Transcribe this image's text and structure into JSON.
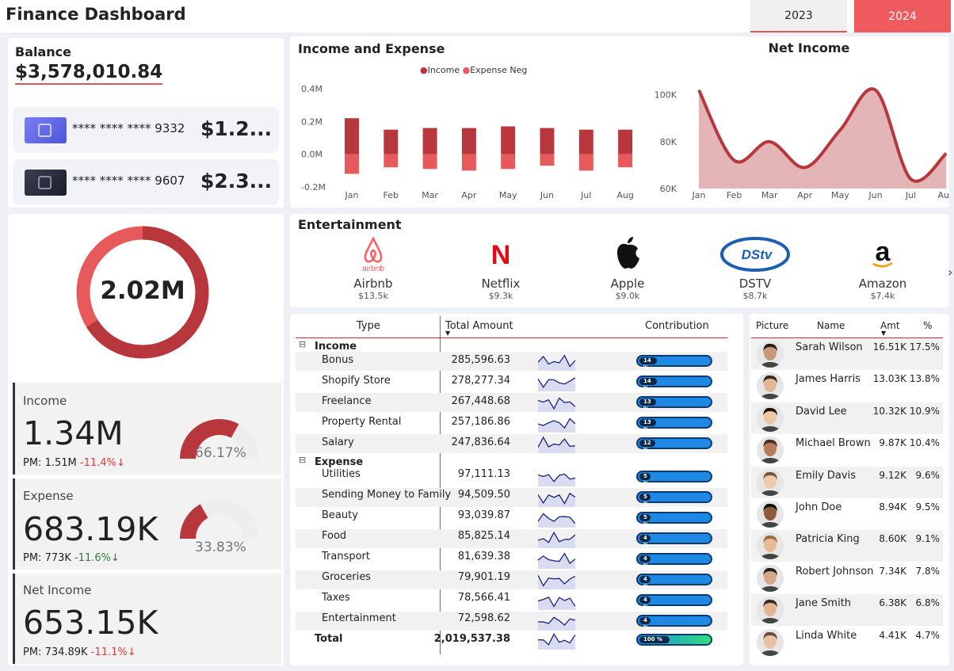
{
  "header": {
    "title": "Finance Dashboard",
    "years": [
      "2023",
      "2024"
    ],
    "selected_year": "2024"
  },
  "balance": {
    "label": "Balance",
    "amount": "$3,578,010.84",
    "cards": [
      {
        "number": "**** **** **** 9332",
        "amount": "$1.2..."
      },
      {
        "number": "**** **** **** 9607",
        "amount": "$2.3..."
      }
    ]
  },
  "donut": {
    "value": "2.02M",
    "income_share": 0.6617
  },
  "kpis": {
    "income": {
      "label": "Income",
      "value": "1.34M",
      "pm_label": "PM: 1.51M",
      "change": "-11.4%",
      "gauge_pct": "66.17%",
      "gauge_fraction": 0.6617
    },
    "expense": {
      "label": "Expense",
      "value": "683.19K",
      "pm_label": "PM: 773K",
      "change": "-11.6%",
      "gauge_pct": "33.83%",
      "gauge_fraction": 0.3383
    },
    "net": {
      "label": "Net Income",
      "value": "653.15K",
      "pm_label": "PM: 734.89K",
      "change": "-11.1%"
    }
  },
  "chart_data": [
    {
      "type": "bar",
      "title": "Income and Expense",
      "categories": [
        "Jan",
        "Feb",
        "Mar",
        "Apr",
        "May",
        "Jun",
        "Jul",
        "Aug"
      ],
      "series": [
        {
          "name": "Income",
          "values": [
            0.22,
            0.15,
            0.16,
            0.16,
            0.17,
            0.16,
            0.15,
            0.15
          ],
          "color": "#b8373d"
        },
        {
          "name": "Expense Neg",
          "values": [
            -0.12,
            -0.08,
            -0.09,
            -0.1,
            -0.09,
            -0.07,
            -0.1,
            -0.08
          ],
          "color": "#e8595c"
        }
      ],
      "yticks": [
        "0.4M",
        "0.2M",
        "0.0M",
        "-0.2M"
      ],
      "ylim": [
        -0.2,
        0.4
      ]
    },
    {
      "type": "area",
      "title": "Net Income",
      "x": [
        "Jan",
        "Feb",
        "Mar",
        "Apr",
        "May",
        "Jun",
        "Jul",
        "Aug"
      ],
      "values": [
        102000,
        72000,
        80000,
        69000,
        85000,
        102000,
        64000,
        75000
      ],
      "yticks": [
        "100K",
        "80K",
        "60K"
      ],
      "ylim": [
        60000,
        108000
      ]
    }
  ],
  "entertainment": {
    "title": "Entertainment",
    "items": [
      {
        "name": "Airbnb",
        "value": "$13.5k",
        "logo_text": "airbnb"
      },
      {
        "name": "Netflix",
        "value": "$9.3k",
        "logo_text": "N"
      },
      {
        "name": "Apple",
        "value": "$9.0k"
      },
      {
        "name": "DSTV",
        "value": "$8.7k",
        "logo_text": "DStv"
      },
      {
        "name": "Amazon",
        "value": "$7.4k",
        "logo_text": "a"
      }
    ]
  },
  "table": {
    "headers": {
      "type": "Type",
      "total": "Total Amount",
      "contribution": "Contribution"
    },
    "income_label": "Income",
    "expense_label": "Expense",
    "income": [
      {
        "name": "Bonus",
        "amount": "285,596.63",
        "pct": "14 %",
        "frac": 0.14
      },
      {
        "name": "Shopify Store",
        "amount": "278,277.34",
        "pct": "14 %",
        "frac": 0.14
      },
      {
        "name": "Freelance",
        "amount": "267,448.68",
        "pct": "13 %",
        "frac": 0.13
      },
      {
        "name": "Property Rental",
        "amount": "257,186.86",
        "pct": "13 %",
        "frac": 0.13
      },
      {
        "name": "Salary",
        "amount": "247,836.64",
        "pct": "12 %",
        "frac": 0.12
      }
    ],
    "expense": [
      {
        "name": "Utilities",
        "amount": "97,111.13",
        "pct": "5 %",
        "frac": 0.05
      },
      {
        "name": "Sending Money to Family",
        "amount": "94,509.50",
        "pct": "5 %",
        "frac": 0.05
      },
      {
        "name": "Beauty",
        "amount": "93,039.87",
        "pct": "5 %",
        "frac": 0.05
      },
      {
        "name": "Food",
        "amount": "85,825.14",
        "pct": "4 %",
        "frac": 0.04
      },
      {
        "name": "Transport",
        "amount": "81,639.38",
        "pct": "4 %",
        "frac": 0.04
      },
      {
        "name": "Groceries",
        "amount": "79,901.19",
        "pct": "4 %",
        "frac": 0.04
      },
      {
        "name": "Taxes",
        "amount": "78,566.41",
        "pct": "4 %",
        "frac": 0.04
      },
      {
        "name": "Entertainment",
        "amount": "72,598.62",
        "pct": "4 %",
        "frac": 0.04
      }
    ],
    "total": {
      "name": "Total",
      "amount": "2,019,537.38",
      "pct": "100 %",
      "frac": 1.0
    }
  },
  "people": {
    "headers": {
      "picture": "Picture",
      "name": "Name",
      "amt": "Amt",
      "pct": "%"
    },
    "rows": [
      {
        "name": "Sarah Wilson",
        "amt": "16.51K",
        "pct": "17.5%"
      },
      {
        "name": "James Harris",
        "amt": "13.03K",
        "pct": "13.8%"
      },
      {
        "name": "David Lee",
        "amt": "10.32K",
        "pct": "10.9%"
      },
      {
        "name": "Michael Brown",
        "amt": "9.87K",
        "pct": "10.4%"
      },
      {
        "name": "Emily Davis",
        "amt": "9.12K",
        "pct": "9.6%"
      },
      {
        "name": "John Doe",
        "amt": "8.94K",
        "pct": "9.5%"
      },
      {
        "name": "Patricia King",
        "amt": "8.60K",
        "pct": "9.1%"
      },
      {
        "name": "Robert Johnson",
        "amt": "7.34K",
        "pct": "7.8%"
      },
      {
        "name": "Jane Smith",
        "amt": "6.38K",
        "pct": "6.8%"
      },
      {
        "name": "Linda White",
        "amt": "4.41K",
        "pct": "4.7%"
      }
    ]
  }
}
